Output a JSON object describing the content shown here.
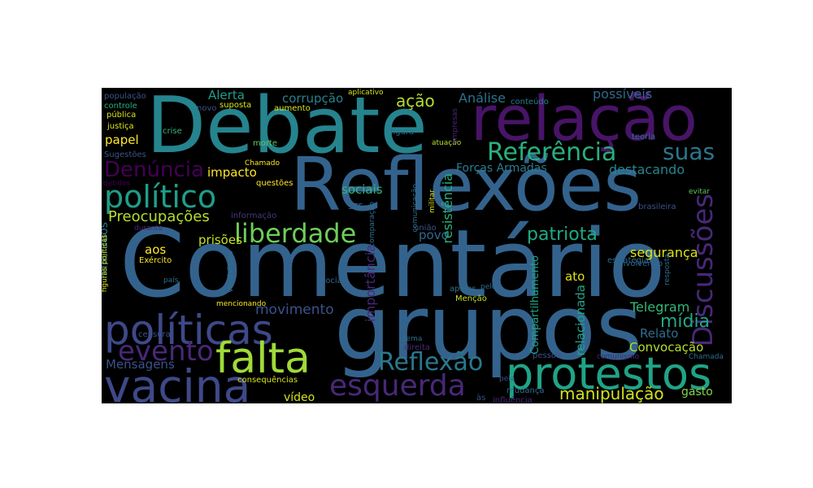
{
  "chart_data": {
    "type": "wordcloud",
    "words": [
      {
        "text": "Comentário",
        "weight": 100,
        "color": "#33638d",
        "rotate": false
      },
      {
        "text": "Reflexões",
        "weight": 80,
        "color": "#33638d",
        "rotate": false
      },
      {
        "text": "grupos",
        "weight": 78,
        "color": "#33638d",
        "rotate": false
      },
      {
        "text": "Debate",
        "weight": 74,
        "color": "#25848e",
        "rotate": false
      },
      {
        "text": "relação",
        "weight": 55,
        "color": "#481467",
        "rotate": false
      },
      {
        "text": "protestos",
        "weight": 42,
        "color": "#20a386",
        "rotate": false
      },
      {
        "text": "políticas",
        "weight": 41,
        "color": "#3e4989",
        "rotate": false
      },
      {
        "text": "vacina",
        "weight": 40,
        "color": "#3e4989",
        "rotate": false
      },
      {
        "text": "falta",
        "weight": 38,
        "color": "#a0da39",
        "rotate": false
      },
      {
        "text": "político",
        "weight": 34,
        "color": "#1f9e89",
        "rotate": false
      },
      {
        "text": "esquerda",
        "weight": 30,
        "color": "#482878",
        "rotate": false
      },
      {
        "text": "evento",
        "weight": 29,
        "color": "#482878",
        "rotate": false
      },
      {
        "text": "Discussões",
        "weight": 28,
        "color": "#482878",
        "rotate": true
      },
      {
        "text": "Referência",
        "weight": 27,
        "color": "#29af7f",
        "rotate": false
      },
      {
        "text": "liberdade",
        "weight": 27,
        "color": "#6ece58",
        "rotate": false
      },
      {
        "text": "Reflexão",
        "weight": 25,
        "color": "#2a788e",
        "rotate": false
      },
      {
        "text": "Denúncia",
        "weight": 23,
        "color": "#440154",
        "rotate": false
      },
      {
        "text": "suas",
        "weight": 22,
        "color": "#2a788e",
        "rotate": false
      },
      {
        "text": "manipulação",
        "weight": 19,
        "color": "#d2e21b",
        "rotate": false
      },
      {
        "text": "mídia",
        "weight": 19,
        "color": "#22a884",
        "rotate": false
      },
      {
        "text": "patriota",
        "weight": 18,
        "color": "#22a884",
        "rotate": false
      },
      {
        "text": "Preocupações",
        "weight": 16,
        "color": "#b5de2b",
        "rotate": false
      },
      {
        "text": "movimento",
        "weight": 15,
        "color": "#3b528b",
        "rotate": false
      },
      {
        "text": "ação",
        "weight": 15,
        "color": "#b5de2b",
        "rotate": false
      },
      {
        "text": "Mensagens",
        "weight": 13,
        "color": "#3b528b",
        "rotate": false
      },
      {
        "text": "Telegram",
        "weight": 13,
        "color": "#35b779",
        "rotate": false
      },
      {
        "text": "Análise",
        "weight": 13,
        "color": "#2c728e",
        "rotate": false
      },
      {
        "text": "possíveis",
        "weight": 13,
        "color": "#31688e",
        "rotate": false
      },
      {
        "text": "destacando",
        "weight": 13,
        "color": "#25848e",
        "rotate": false
      },
      {
        "text": "Alerta",
        "weight": 13,
        "color": "#1f9e89",
        "rotate": false
      },
      {
        "text": "corrupção",
        "weight": 13,
        "color": "#26828e",
        "rotate": false
      },
      {
        "text": "impacto",
        "weight": 13,
        "color": "#fde725",
        "rotate": false
      },
      {
        "text": "papel",
        "weight": 13,
        "color": "#fde725",
        "rotate": false
      },
      {
        "text": "Forças Armadas",
        "weight": 13,
        "color": "#287d8e",
        "rotate": false
      },
      {
        "text": "sociais",
        "weight": 13,
        "color": "#35b779",
        "rotate": false
      },
      {
        "text": "povo",
        "weight": 13,
        "color": "#31688e",
        "rotate": false
      },
      {
        "text": "prisões",
        "weight": 13,
        "color": "#c8e020",
        "rotate": false
      },
      {
        "text": "aos",
        "weight": 13,
        "color": "#fde725",
        "rotate": false
      },
      {
        "text": "segurança",
        "weight": 13,
        "color": "#dde318",
        "rotate": false
      },
      {
        "text": "ato",
        "weight": 13,
        "color": "#dde318",
        "rotate": false
      },
      {
        "text": "Relato",
        "weight": 13,
        "color": "#2e6e8e",
        "rotate": false
      },
      {
        "text": "Convocação",
        "weight": 13,
        "color": "#b5de2b",
        "rotate": false
      },
      {
        "text": "vídeo",
        "weight": 12,
        "color": "#d8e219",
        "rotate": false
      },
      {
        "text": "gasto",
        "weight": 12,
        "color": "#84d44b",
        "rotate": false
      },
      {
        "text": "resistência",
        "weight": 13,
        "color": "#29af7f",
        "rotate": true
      },
      {
        "text": "importância",
        "weight": 12,
        "color": "#482878",
        "rotate": true
      },
      {
        "text": "relacionada",
        "weight": 12,
        "color": "#20a386",
        "rotate": true
      },
      {
        "text": "infiltrados",
        "weight": 12,
        "color": "#2a788e",
        "rotate": true
      },
      {
        "text": "Compartilhamento",
        "weight": 10,
        "color": "#20a386",
        "rotate": true
      },
      {
        "text": "novo",
        "weight": 9,
        "color": "#3b528b",
        "rotate": false
      },
      {
        "text": "suposta",
        "weight": 9,
        "color": "#dde318",
        "rotate": false
      },
      {
        "text": "aumento",
        "weight": 9,
        "color": "#d8e219",
        "rotate": false
      },
      {
        "text": "conteúdo",
        "weight": 9,
        "color": "#287d8e",
        "rotate": false
      },
      {
        "text": "aplicativo",
        "weight": 9,
        "color": "#d8e219",
        "rotate": false
      },
      {
        "text": "população",
        "weight": 9,
        "color": "#3b528b",
        "rotate": false
      },
      {
        "text": "controle",
        "weight": 9,
        "color": "#27ad81",
        "rotate": false
      },
      {
        "text": "pública",
        "weight": 9,
        "color": "#dde318",
        "rotate": false
      },
      {
        "text": "justiça",
        "weight": 9,
        "color": "#dde318",
        "rotate": false
      },
      {
        "text": "crise",
        "weight": 9,
        "color": "#35b779",
        "rotate": false
      },
      {
        "text": "figura",
        "weight": 9,
        "color": "#2e6e8e",
        "rotate": false
      },
      {
        "text": "teoria",
        "weight": 9,
        "color": "#2e6e8e",
        "rotate": false
      },
      {
        "text": "Sugestões",
        "weight": 9,
        "color": "#3b528b",
        "rotate": false
      },
      {
        "text": "morte",
        "weight": 9,
        "color": "#5ec962",
        "rotate": false
      },
      {
        "text": "atuação",
        "weight": 9,
        "color": "#b5de2b",
        "rotate": false
      },
      {
        "text": "Chamado",
        "weight": 8,
        "color": "#fde725",
        "rotate": false
      },
      {
        "text": "questões",
        "weight": 9,
        "color": "#fde725",
        "rotate": false
      },
      {
        "text": "detidos",
        "weight": 8,
        "color": "#440154",
        "rotate": false
      },
      {
        "text": "informação",
        "weight": 9,
        "color": "#443a83",
        "rotate": false
      },
      {
        "text": "evitar",
        "weight": 8,
        "color": "#5ec962",
        "rotate": false
      },
      {
        "text": "brasileira",
        "weight": 9,
        "color": "#3b528b",
        "rotate": false
      },
      {
        "text": "STF",
        "weight": 8,
        "color": "#31688e",
        "rotate": false
      },
      {
        "text": "durante",
        "weight": 8,
        "color": "#482878",
        "rotate": false
      },
      {
        "text": "união",
        "weight": 9,
        "color": "#3b528b",
        "rotate": false
      },
      {
        "text": "envolvendo",
        "weight": 9,
        "color": "#31688e",
        "rotate": false
      },
      {
        "text": "Exército",
        "weight": 9,
        "color": "#fde725",
        "rotate": false
      },
      {
        "text": "estratégia",
        "weight": 9,
        "color": "#31688e",
        "rotate": false
      },
      {
        "text": "apelos",
        "weight": 9,
        "color": "#2e6e8e",
        "rotate": false
      },
      {
        "text": "Menção",
        "weight": 9,
        "color": "#c2df23",
        "rotate": false
      },
      {
        "text": "país",
        "weight": 8,
        "color": "#2e6e8e",
        "rotate": false
      },
      {
        "text": "social",
        "weight": 9,
        "color": "#31688e",
        "rotate": false
      },
      {
        "text": "pelo",
        "weight": 8,
        "color": "#2e6e8e",
        "rotate": false
      },
      {
        "text": "mencionando",
        "weight": 8,
        "color": "#fde725",
        "rotate": false
      },
      {
        "text": "censura",
        "weight": 9,
        "color": "#3b528b",
        "rotate": false
      },
      {
        "text": "tema",
        "weight": 8,
        "color": "#2e6e8e",
        "rotate": false
      },
      {
        "text": "direita",
        "weight": 9,
        "color": "#482878",
        "rotate": false
      },
      {
        "text": "pessoa",
        "weight": 9,
        "color": "#3b528b",
        "rotate": false
      },
      {
        "text": "comunismo",
        "weight": 8,
        "color": "#482878",
        "rotate": false
      },
      {
        "text": "Chamada",
        "weight": 8,
        "color": "#2e6e8e",
        "rotate": false
      },
      {
        "text": "consequências",
        "weight": 9,
        "color": "#d8e219",
        "rotate": false
      },
      {
        "text": "pela",
        "weight": 8,
        "color": "#3b528b",
        "rotate": false
      },
      {
        "text": "mudança",
        "weight": 9,
        "color": "#2e6e8e",
        "rotate": false
      },
      {
        "text": "influência",
        "weight": 9,
        "color": "#482878",
        "rotate": false
      },
      {
        "text": "às",
        "weight": 9,
        "color": "#3b528b",
        "rotate": false
      },
      {
        "text": "figuras políticas",
        "weight": 8,
        "color": "#d8e219",
        "rotate": true
      },
      {
        "text": "vandalismo",
        "weight": 8,
        "color": "#2e6e8e",
        "rotate": true
      },
      {
        "text": "comparação",
        "weight": 8,
        "color": "#2e6e8e",
        "rotate": true
      },
      {
        "text": "comunicação",
        "weight": 8,
        "color": "#2e6e8e",
        "rotate": true
      },
      {
        "text": "militar",
        "weight": 8,
        "color": "#d8e219",
        "rotate": true
      },
      {
        "text": "empresas",
        "weight": 8,
        "color": "#482878",
        "rotate": true
      },
      {
        "text": "resposta",
        "weight": 8,
        "color": "#2e6e8e",
        "rotate": true
      }
    ]
  }
}
